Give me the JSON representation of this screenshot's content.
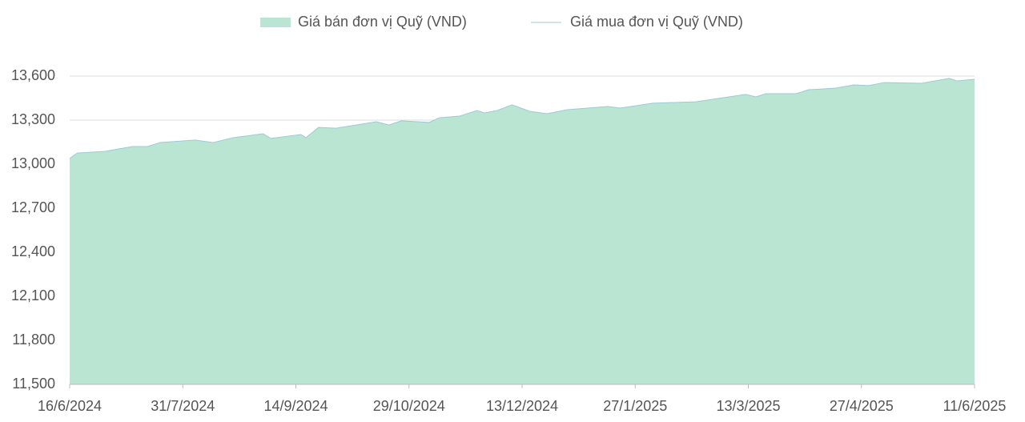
{
  "chart_data": {
    "type": "area",
    "x": [
      "16/6/2024",
      "19/6/2024",
      "30/6/2024",
      "11/7/2024",
      "17/7/2024",
      "22/7/2024",
      "5/8/2024",
      "12/8/2024",
      "20/8/2024",
      "1/9/2024",
      "4/9/2024",
      "16/9/2024",
      "18/9/2024",
      "23/9/2024",
      "30/9/2024",
      "16/10/2024",
      "21/10/2024",
      "26/10/2024",
      "6/11/2024",
      "10/11/2024",
      "18/11/2024",
      "25/11/2024",
      "28/11/2024",
      "3/12/2024",
      "9/12/2024",
      "16/12/2024",
      "23/12/2024",
      "31/12/2024",
      "16/1/2025",
      "21/1/2025",
      "3/2/2025",
      "20/2/2025",
      "12/3/2025",
      "16/3/2025",
      "20/3/2025",
      "1/4/2025",
      "6/4/2025",
      "17/4/2025",
      "24/4/2025",
      "30/4/2025",
      "6/5/2025",
      "21/5/2025",
      "1/6/2025",
      "4/6/2025",
      "11/6/2025"
    ],
    "series": [
      {
        "name": "Giá bán đơn vị Quỹ (VND)",
        "color": "#bbe5d3",
        "kind": "area",
        "values": [
          13038,
          13076,
          13087,
          13120,
          13120,
          13147,
          13164,
          13147,
          13180,
          13207,
          13175,
          13202,
          13180,
          13250,
          13245,
          13289,
          13267,
          13295,
          13284,
          13316,
          13327,
          13365,
          13349,
          13365,
          13404,
          13360,
          13344,
          13371,
          13393,
          13382,
          13415,
          13425,
          13475,
          13458,
          13480,
          13480,
          13507,
          13518,
          13540,
          13535,
          13556,
          13551,
          13584,
          13567,
          13578
        ]
      },
      {
        "name": "Giá mua đơn vị Quỹ (VND)",
        "color": "#9fc8d6",
        "kind": "line",
        "values": [
          13038,
          13076,
          13087,
          13120,
          13120,
          13147,
          13164,
          13147,
          13180,
          13207,
          13175,
          13202,
          13180,
          13250,
          13245,
          13289,
          13267,
          13295,
          13284,
          13316,
          13327,
          13365,
          13349,
          13365,
          13404,
          13360,
          13344,
          13371,
          13393,
          13382,
          13415,
          13425,
          13475,
          13458,
          13480,
          13480,
          13507,
          13518,
          13540,
          13535,
          13556,
          13551,
          13584,
          13567,
          13578
        ]
      }
    ],
    "xlim": [
      "16/6/2024",
      "11/6/2025"
    ],
    "xticks": [
      "16/6/2024",
      "31/7/2024",
      "14/9/2024",
      "29/10/2024",
      "13/12/2024",
      "27/1/2025",
      "13/3/2025",
      "27/4/2025",
      "11/6/2025"
    ],
    "ylim": [
      11500,
      13600
    ],
    "yticks": [
      {
        "value": 11500,
        "label": "11,500"
      },
      {
        "value": 11800,
        "label": "11,800"
      },
      {
        "value": 12100,
        "label": "12,100"
      },
      {
        "value": 12400,
        "label": "12,400"
      },
      {
        "value": 12700,
        "label": "12,700"
      },
      {
        "value": 13000,
        "label": "13,000"
      },
      {
        "value": 13300,
        "label": "13,300"
      },
      {
        "value": 13600,
        "label": "13,600"
      }
    ],
    "grid": true
  }
}
